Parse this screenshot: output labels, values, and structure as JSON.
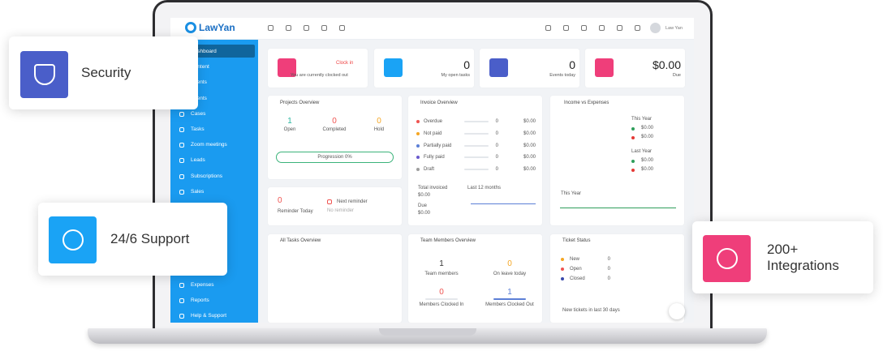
{
  "features": [
    {
      "label": "Security"
    },
    {
      "label": "24/6 Support"
    },
    {
      "label": "200+ Integrations"
    }
  ],
  "header": {
    "logo": "LawYan",
    "user": "Law Yan"
  },
  "sidebar": [
    "Dashboard",
    "Content",
    "Clients",
    "Events",
    "Cases",
    "Tasks",
    "Zoom meetings",
    "Leads",
    "Subscriptions",
    "Sales",
    "Expenses",
    "Reports",
    "Help & Support"
  ],
  "stats": [
    {
      "action": "Clock in",
      "label": "You are currently clocked out"
    },
    {
      "value": "0",
      "label": "My open tasks"
    },
    {
      "value": "0",
      "label": "Events today"
    },
    {
      "value": "$0.00",
      "label": "Due"
    }
  ],
  "projects": {
    "title": "Projects Overview",
    "items": [
      {
        "value": "1",
        "label": "Open"
      },
      {
        "value": "0",
        "label": "Completed"
      },
      {
        "value": "0",
        "label": "Hold"
      }
    ],
    "progress": "Progression 0%"
  },
  "reminder": {
    "value": "0",
    "label": "Reminder Today",
    "next": "Next reminder",
    "none": "No reminder"
  },
  "invoice": {
    "title": "Invoice Overview",
    "rows": [
      {
        "label": "Overdue",
        "count": "0",
        "amount": "$0.00"
      },
      {
        "label": "Not paid",
        "count": "0",
        "amount": "$0.00"
      },
      {
        "label": "Partially paid",
        "count": "0",
        "amount": "$0.00"
      },
      {
        "label": "Fully paid",
        "count": "0",
        "amount": "$0.00"
      },
      {
        "label": "Draft",
        "count": "0",
        "amount": "$0.00"
      }
    ],
    "total_label": "Total invoiced",
    "total": "$0.00",
    "period": "Last 12 months",
    "due_label": "Due",
    "due": "$0.00"
  },
  "income": {
    "title": "Income vs Expenses",
    "this_year": "This Year",
    "this_values": [
      "$0.00",
      "$0.00"
    ],
    "last_year": "Last Year",
    "last_values": [
      "$0.00",
      "$0.00"
    ],
    "chart_label": "This Year"
  },
  "tasks": {
    "title": "All Tasks Overview"
  },
  "team": {
    "title": "Team Members Overview",
    "items": [
      {
        "value": "1",
        "label": "Team members"
      },
      {
        "value": "0",
        "label": "On leave today"
      },
      {
        "value": "0",
        "label": "Members Clocked In"
      },
      {
        "value": "1",
        "label": "Members Clocked Out"
      }
    ]
  },
  "tickets": {
    "title": "Ticket Status",
    "rows": [
      {
        "label": "New",
        "count": "0"
      },
      {
        "label": "Open",
        "count": "0"
      },
      {
        "label": "Closed",
        "count": "0"
      }
    ],
    "footer": "New tickets in last 30 days"
  }
}
